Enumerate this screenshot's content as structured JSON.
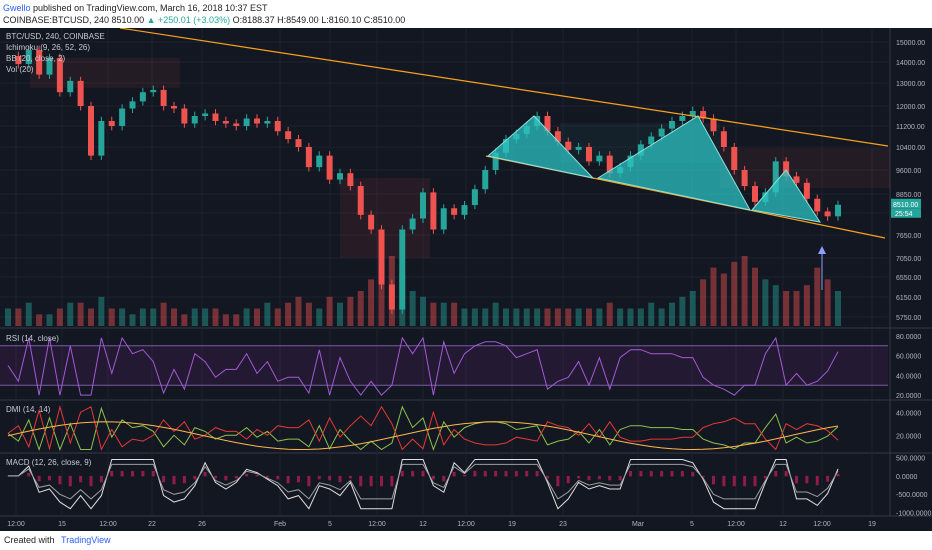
{
  "header": {
    "author": "Gwello",
    "published": "published on TradingView.com, March 16, 2018 10:37 EST",
    "symbol": "COINBASE:BTCUSD, 240",
    "last": "8510.00",
    "change": "▲ +250.01 (+3.03%)",
    "open": "O:8188.37",
    "high": "H:8549.00",
    "low": "L:8160.10",
    "close": "C:8510.00"
  },
  "legend": {
    "main": "BTC/USD, 240, COINBASE",
    "ichimoku": "Ichimoku (9, 26, 52, 26)",
    "bb": "BB (20, close, 2)",
    "vol": "Vol (20)",
    "rsi": "RSI (14, close)",
    "dmi": "DMI (14, 14)",
    "macd": "MACD (12, 26, close, 9)"
  },
  "footer": {
    "created": "Created with",
    "brand": "TradingView"
  },
  "colors": {
    "bg": "#131722",
    "up": "#26a69a",
    "down": "#ef5350",
    "trend": "#f7a21b",
    "pattern": "#2bc2c2",
    "rsi": "#9c27b0"
  },
  "chart_data": {
    "type": "candlestick",
    "symbol": "BTC/USD, 240, COINBASE",
    "y_ticks": [
      "15000.00",
      "14000.00",
      "13000.00",
      "12000.00",
      "11200.00",
      "10400.00",
      "9600.00",
      "8850.00",
      "8250.00",
      "7650.00",
      "7050.00",
      "6550.00",
      "6150.00",
      "5750.00"
    ],
    "x_ticks": [
      "12:00",
      "15",
      "12:00",
      "22",
      "26",
      "Feb",
      "5",
      "12:00",
      "12",
      "12:00",
      "19",
      "23",
      "Mar",
      "5",
      "12:00",
      "12",
      "12:00",
      "19"
    ],
    "price_label": "8510.00",
    "countdown_label": "25:54",
    "price_path": [
      14300,
      13900,
      14600,
      13400,
      14200,
      12600,
      13100,
      12000,
      10100,
      11400,
      11200,
      11900,
      12200,
      12600,
      12700,
      12000,
      11900,
      11300,
      11600,
      11700,
      11400,
      11300,
      11200,
      11500,
      11300,
      11400,
      11000,
      10700,
      10400,
      9700,
      10100,
      9300,
      9500,
      9100,
      8200,
      7800,
      6400,
      5900,
      7800,
      8100,
      8900,
      7800,
      8400,
      8200,
      8500,
      9000,
      9600,
      10200,
      10700,
      10900,
      11200,
      11600,
      11000,
      10600,
      10300,
      10400,
      9900,
      10100,
      9500,
      9700,
      10100,
      10500,
      10800,
      11100,
      11400,
      11600,
      11800,
      11500,
      11000,
      10400,
      9600,
      9100,
      8600,
      8900,
      9900,
      9400,
      9200,
      8700,
      8300,
      8160,
      8510
    ],
    "volume": [
      3,
      3,
      4,
      2,
      2,
      3,
      4,
      4,
      3,
      5,
      3,
      3,
      2,
      3,
      3,
      4,
      3,
      2,
      3,
      3,
      3,
      2,
      2,
      3,
      3,
      4,
      3,
      4,
      5,
      4,
      3,
      5,
      4,
      5,
      6,
      8,
      10,
      12,
      9,
      6,
      5,
      4,
      4,
      4,
      3,
      3,
      3,
      4,
      3,
      3,
      3,
      3,
      3,
      3,
      3,
      3,
      3,
      3,
      4,
      3,
      3,
      3,
      4,
      3,
      4,
      5,
      6,
      8,
      10,
      9,
      11,
      12,
      10,
      8,
      7,
      6,
      6,
      7,
      10,
      8,
      6
    ],
    "rsi": {
      "levels": [
        80.0,
        60.0,
        40.0,
        20.0
      ],
      "band": [
        70,
        30
      ],
      "tick_labels": [
        "80.0000",
        "60.0000",
        "40.0000",
        "20.0000"
      ]
    },
    "dmi": {
      "tick_labels": [
        "40.0000",
        "20.0000"
      ]
    },
    "macd": {
      "tick_labels": [
        "500.0000",
        "0.0000",
        "-500.0000",
        "-1000.0000"
      ]
    }
  }
}
